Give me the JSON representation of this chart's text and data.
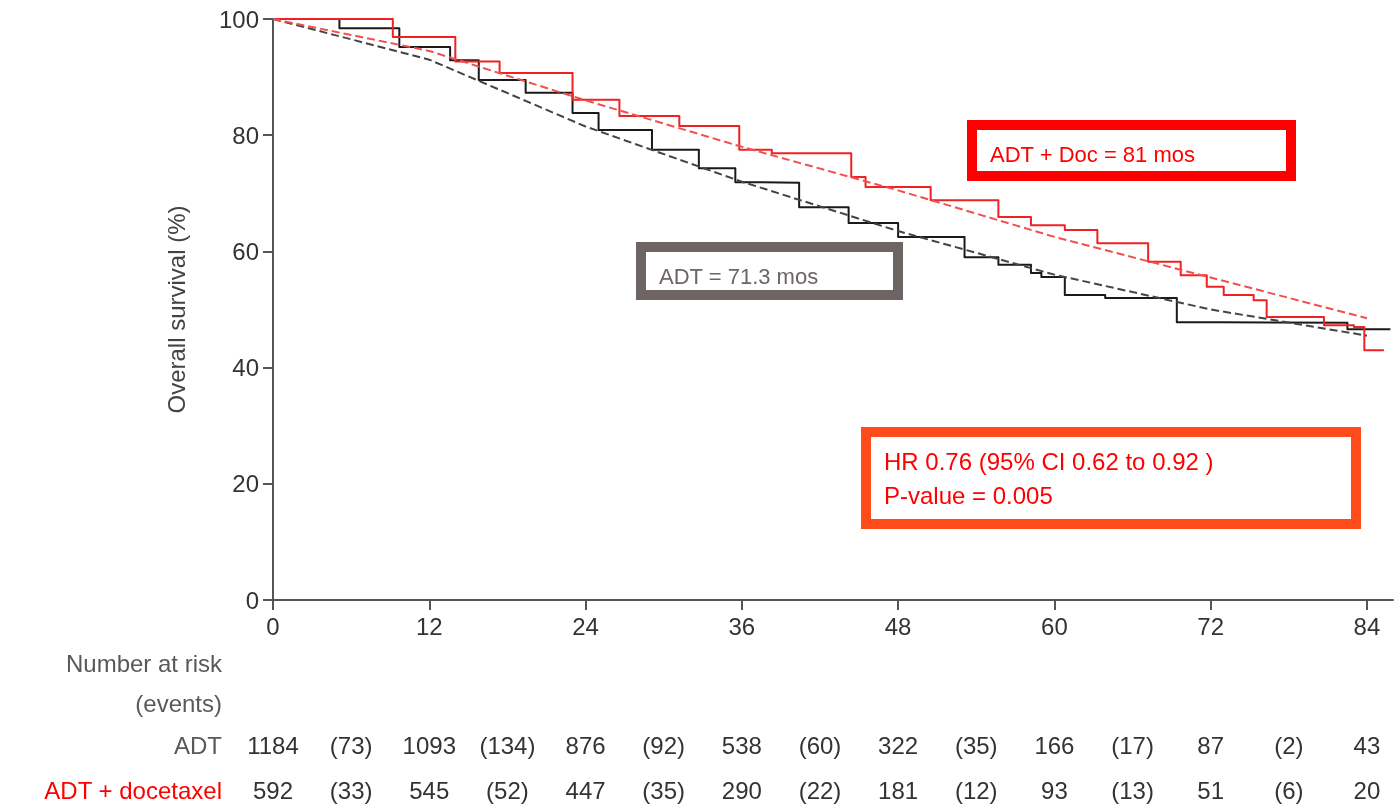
{
  "chart_data": {
    "type": "step",
    "ylabel": "Overall survival (%)",
    "xlim": [
      0,
      86
    ],
    "xticks": [
      0,
      12,
      24,
      36,
      48,
      60,
      72,
      84
    ],
    "ylim": [
      0,
      100
    ],
    "yticks": [
      0,
      20,
      40,
      60,
      80,
      100
    ],
    "grid": false,
    "marker": "none",
    "series": [
      {
        "color": "#1a1a1a",
        "x": [
          0,
          5.1,
          9.7,
          13.6,
          15.8,
          19.4,
          23,
          25,
          29.1,
          32.7,
          35.5,
          37.3,
          40.4,
          44.2,
          48,
          53.1,
          55.7,
          58.2,
          59,
          60.8,
          63.9,
          69.4,
          72.7,
          82.5,
          85.8
        ],
        "values": [
          100,
          98.4,
          95.2,
          92.9,
          89.5,
          87.3,
          83.8,
          80.9,
          77.5,
          74.3,
          71.9,
          71.8,
          67.6,
          64.9,
          62.5,
          59,
          57.7,
          56.3,
          55.6,
          52.5,
          52,
          47.8,
          47.7,
          46.6,
          46.6
        ]
      },
      {
        "color": "#ee2222",
        "x": [
          0,
          9.2,
          14,
          17.4,
          23,
          26.6,
          31.2,
          35.8,
          38.3,
          44.4,
          45.5,
          50.5,
          55.7,
          58.2,
          60.8,
          63.3,
          67.2,
          69.7,
          71.7,
          73,
          75.3,
          76.3,
          80.7,
          83,
          83.8,
          85.3
        ],
        "values": [
          100,
          96.9,
          92.7,
          90.7,
          86.1,
          83.3,
          81.6,
          77.5,
          76.9,
          72.8,
          71.1,
          68.8,
          65.9,
          64.5,
          63.7,
          61.4,
          58.2,
          55.9,
          53.9,
          52.5,
          51.6,
          48.7,
          47.3,
          47,
          43,
          43
        ]
      },
      {
        "type": "line",
        "line_style": "dashed",
        "color": "#444444",
        "x": [
          0,
          12,
          24,
          36,
          48,
          60,
          72,
          84
        ],
        "values": [
          100,
          93,
          81.5,
          72,
          63.5,
          56,
          50,
          45.5
        ]
      },
      {
        "type": "line",
        "line_style": "dashed",
        "color": "#f05050",
        "x": [
          0,
          12,
          24,
          36,
          48,
          60,
          72,
          84
        ],
        "values": [
          100,
          94.5,
          86,
          78,
          70.5,
          62.5,
          55.5,
          48.5
        ]
      }
    ],
    "annotations": [
      "ADT = 71.3 mos",
      "ADT + Doc = 81 mos",
      "HR 0.76 (95% CI 0.62 to 0.92 )\nP-value = 0.005",
      "Number at risk\n(events)",
      "ADT",
      "1184",
      "(73)",
      "1093",
      "(134)",
      "876",
      "(92)",
      "538",
      "(60)",
      "322",
      "(35)",
      "166",
      "(17)",
      "87",
      "(2)",
      "43",
      "ADT + docetaxel",
      "592",
      "(33)",
      "545",
      "(52)",
      "447",
      "(35)",
      "290",
      "(22)",
      "181",
      "(12)",
      "93",
      "(13)",
      "51",
      "(6)",
      "20"
    ]
  }
}
